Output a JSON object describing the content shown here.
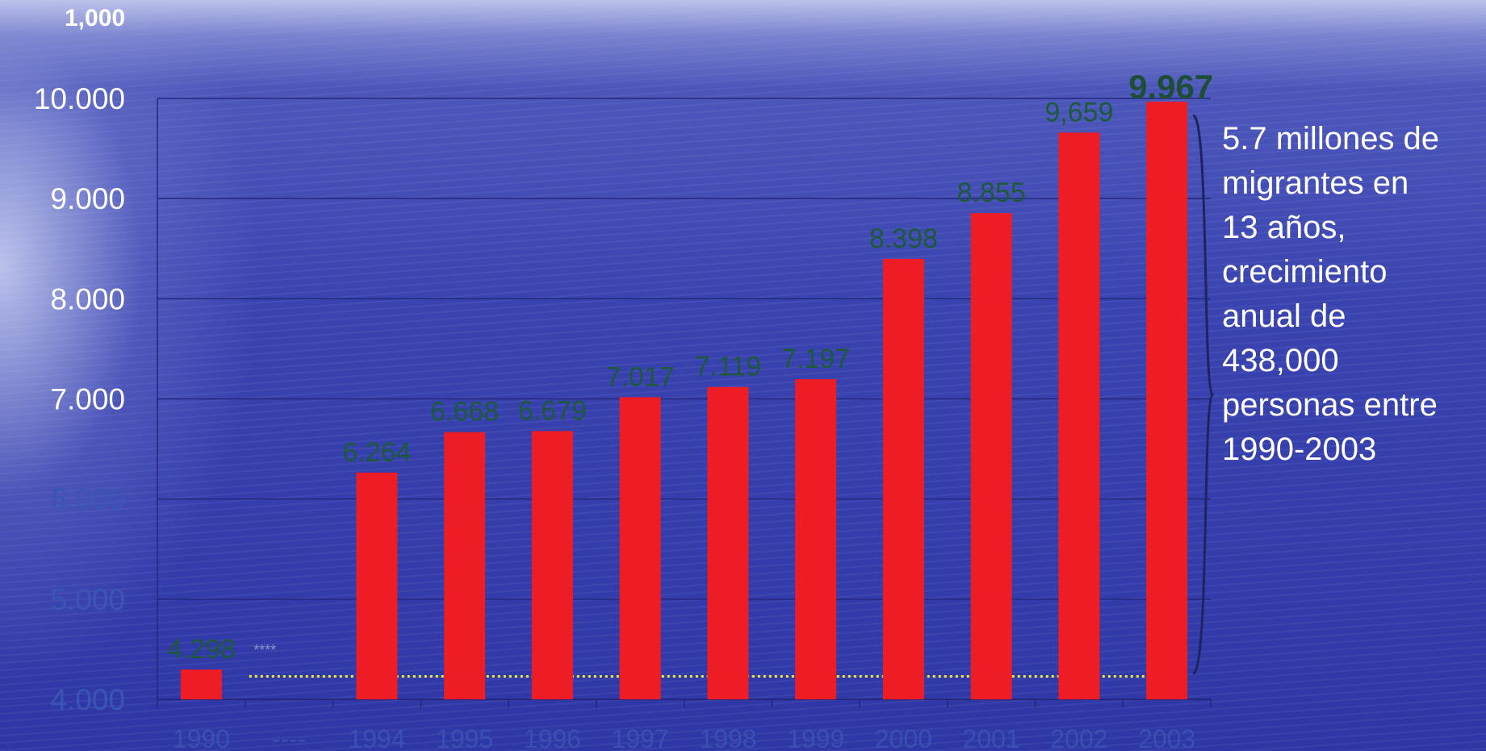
{
  "corner_label": "1,000",
  "annotation": {
    "lines": [
      "5.7 millones de",
      "migrantes en",
      "13 años,",
      "crecimiento",
      "anual de",
      "438,000",
      "personas entre",
      "1990-2003"
    ]
  },
  "break_marker": "****",
  "colors": {
    "bar": "#ee1c25",
    "value_label": "#1e5a3a",
    "value_label_highlight": "#1e4d38",
    "axis_text_light": "#ffffff",
    "axis_text_dark": "#3a55b3",
    "gridline": "#23287e",
    "baseline_dotted": "#f2ec3c",
    "brace": "#20245e"
  },
  "chart_data": {
    "type": "bar",
    "categories": [
      "1990",
      "----",
      "1994",
      "1995",
      "1996",
      "1997",
      "1998",
      "1999",
      "2000",
      "2001",
      "2002",
      "2003"
    ],
    "values": [
      4298,
      null,
      6264,
      6668,
      6679,
      7017,
      7119,
      7197,
      8398,
      8855,
      9659,
      9967
    ],
    "value_labels": [
      "4.298",
      "",
      "6.264",
      "6.668",
      "6.679",
      "7.017",
      "7.119",
      "7.197",
      "8.398",
      "8.855",
      "9,659",
      "9.967"
    ],
    "ylim": [
      4000,
      10000
    ],
    "yticks": [
      4000,
      5000,
      6000,
      7000,
      8000,
      9000,
      10000
    ],
    "ytick_labels": [
      "4.000",
      "5.000",
      "6.000",
      "7.000",
      "8.000",
      "9.000",
      "10.000"
    ],
    "grid": true,
    "reference_line_value": 4230
  }
}
